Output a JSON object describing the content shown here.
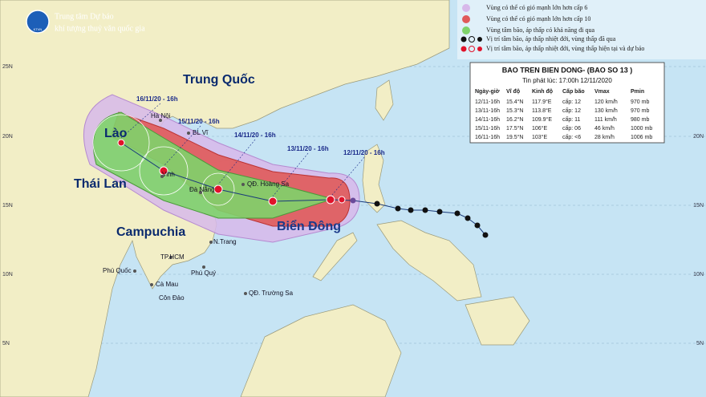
{
  "header": {
    "logo": "KTVN",
    "line1": "Trung tâm Dự báo",
    "line2": "khí tượng thuỷ văn quốc gia"
  },
  "legend": [
    "Vùng có thể có gió mạnh lớn hơn cấp 6",
    "Vùng có thể có gió mạnh lớn hơn cấp 10",
    "Vùng tâm bão, áp thấp có khả năng đi qua",
    "Vị trí tâm bão, áp thấp nhiệt đới, vùng thấp đã qua",
    "Vị trí tâm bão, áp thấp nhiệt đới, vùng thấp hiện tại và dự báo"
  ],
  "info_box": {
    "title": "BAO TREN BIEN DONG- (BAO SO 13 )",
    "issued": "Tin phát lúc: 17:00h 12/11/2020",
    "columns": [
      "Ngày-giờ",
      "Vĩ độ",
      "Kinh độ",
      "Cấp bão",
      "Vmax",
      "Pmin"
    ],
    "rows": [
      [
        "12/11-16h",
        "15.4°N",
        "117.9°E",
        "cấp: 12",
        "120 km/h",
        "970 mb"
      ],
      [
        "13/11-16h",
        "15.3°N",
        "113.8°E",
        "cấp: 12",
        "130 km/h",
        "970 mb"
      ],
      [
        "14/11-16h",
        "16.2°N",
        "109.9°E",
        "cấp: 11",
        "111 km/h",
        "980 mb"
      ],
      [
        "15/11-16h",
        "17.5°N",
        "106°E",
        "cấp: 06",
        "46 km/h",
        "1000 mb"
      ],
      [
        "16/11-16h",
        "19.5°N",
        "103°E",
        "cấp: <6",
        "28 km/h",
        "1006 mb"
      ]
    ]
  },
  "countries": [
    "Trung Quốc",
    "Lào",
    "Thái Lan",
    "Campuchia",
    "Biển Đông"
  ],
  "places": [
    "Hà Nội",
    "BL Vĩ",
    "Vinh",
    "Đà Nẵng",
    "QĐ. Hoàng Sa",
    "N.Trang",
    "TP.HCM",
    "Phú Quốc",
    "Phú Quý",
    "Cà Mau",
    "Côn Đảo",
    "QĐ. Trường Sa"
  ],
  "forecast_labels": [
    "16/11/20 - 16h",
    "15/11/20 - 16h",
    "14/11/20 - 16h",
    "13/11/20 - 16h",
    "12/11/20 - 16h"
  ],
  "latitudes": [
    "25N",
    "20N",
    "15N",
    "10N",
    "5N"
  ]
}
